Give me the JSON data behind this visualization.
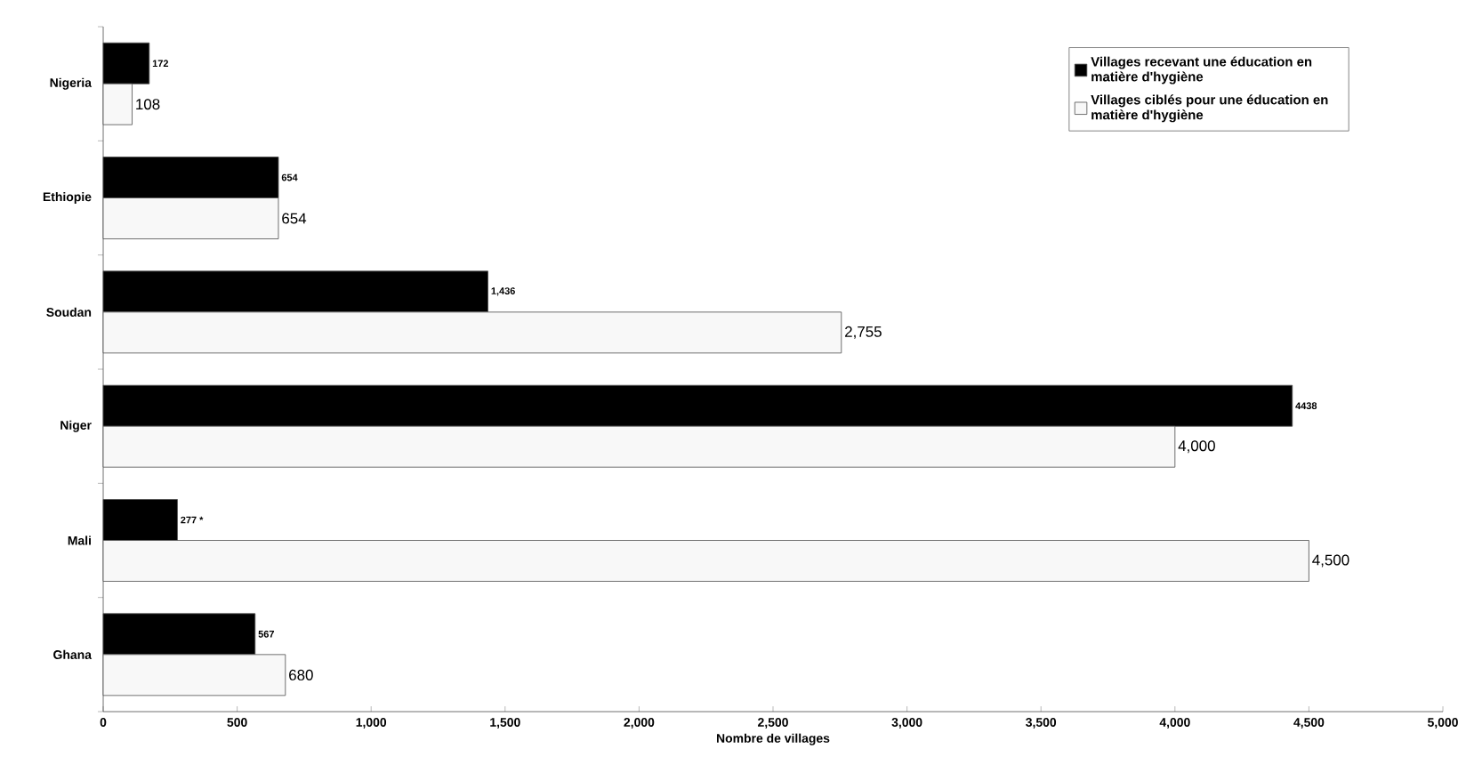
{
  "chart_data": {
    "type": "bar",
    "orientation": "horizontal",
    "xlabel": "Nombre de villages",
    "categories": [
      "Nigeria",
      "Ethiopie",
      "Soudan",
      "Niger",
      "Mali",
      "Ghana"
    ],
    "series": [
      {
        "name": "Villages recevant une éducation en matière d'hygiène",
        "color": "#000000",
        "values": [
          172,
          654,
          1436,
          4438,
          277,
          567
        ],
        "value_labels": [
          "172",
          "654",
          "1,436",
          "4438",
          "277 *",
          "567"
        ]
      },
      {
        "name": "Villages ciblés pour une éducation en matière d'hygiène",
        "color": "#f8f8f8",
        "values": [
          108,
          654,
          2755,
          4000,
          4500,
          680
        ],
        "value_labels": [
          "108",
          "654",
          "2,755",
          "4,000",
          "4,500",
          "680"
        ]
      }
    ],
    "xlim": [
      0,
      5000
    ],
    "xticks": [
      0,
      500,
      {
        "value": 1000,
        "label": "1,000"
      },
      {
        "value": 1500,
        "label": "1,500"
      },
      {
        "value": 2000,
        "label": "2,000"
      },
      {
        "value": 2500,
        "label": "2,500"
      },
      {
        "value": 3000,
        "label": "3,000"
      },
      {
        "value": 3500,
        "label": "3,500"
      },
      {
        "value": 4000,
        "label": "4,000"
      },
      {
        "value": 4500,
        "label": "4,500"
      },
      {
        "value": 5000,
        "label": "5,000"
      }
    ],
    "legend": "top right"
  }
}
